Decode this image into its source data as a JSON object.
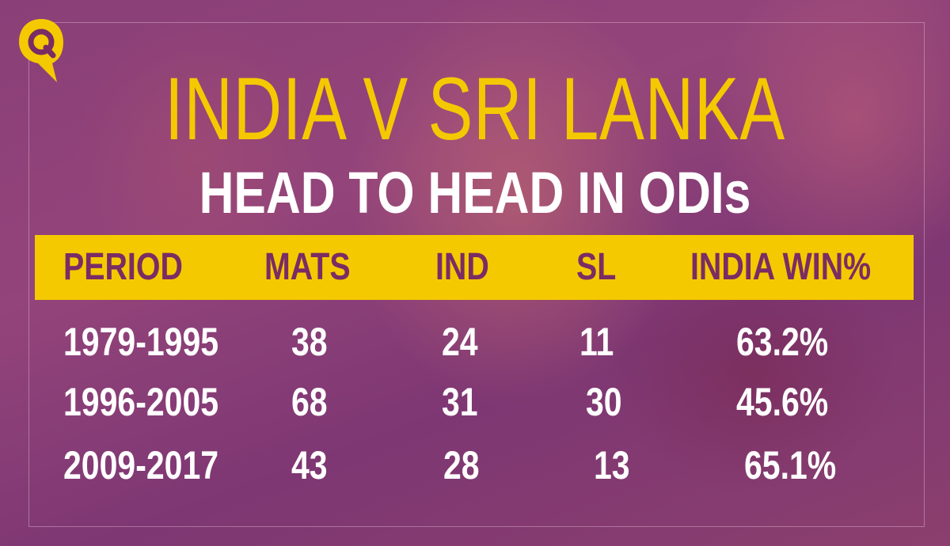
{
  "brand": {
    "logo_letter": "Q",
    "colors": {
      "yellow": "#f5c900",
      "plum": "#7a2c64",
      "background": "#8a3f78"
    }
  },
  "title": "INDIA V SRI LANKA",
  "subtitle": "HEAD TO HEAD IN ODIs",
  "table": {
    "headers": [
      "PERIOD",
      "MATS",
      "IND",
      "SL",
      "INDIA WIN%"
    ],
    "rows": [
      [
        "1979-1995",
        "38",
        "24",
        "11",
        "63.2%"
      ],
      [
        "1996-2005",
        "68",
        "31",
        "30",
        "45.6%"
      ],
      [
        "2009-2017",
        "43",
        "28",
        "13",
        "65.1%"
      ]
    ]
  }
}
